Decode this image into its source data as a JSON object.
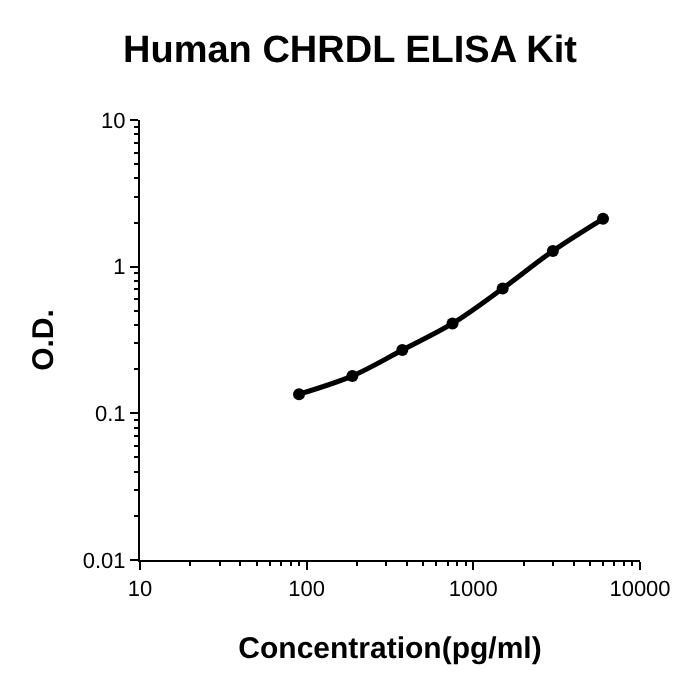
{
  "chart_data": {
    "type": "line",
    "title": "Human CHRDL ELISA Kit",
    "xlabel": "Concentration(pg/ml)",
    "ylabel": "O.D.",
    "x": [
      90,
      188,
      375,
      750,
      1500,
      3000,
      6000
    ],
    "series": [
      {
        "color": "#000000",
        "values": [
          0.135,
          0.18,
          0.27,
          0.41,
          0.71,
          1.28,
          2.12
        ]
      }
    ],
    "log": "xy",
    "xlim": [
      10,
      10000
    ],
    "ylim": [
      0.01,
      10
    ],
    "xticks": [
      10,
      100,
      1000,
      10000
    ],
    "yticks": [
      0.01,
      0.1,
      1,
      10
    ],
    "legend": false,
    "marker": "circle",
    "line_style": "solid"
  }
}
